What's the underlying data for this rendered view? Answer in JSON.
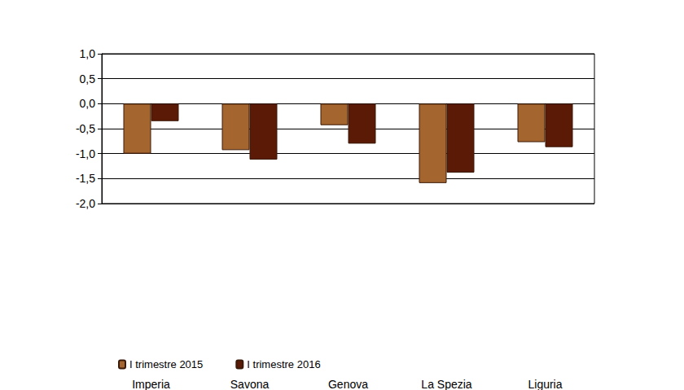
{
  "chart_data": {
    "type": "bar",
    "categories": [
      "Imperia",
      "Savona",
      "Genova",
      "La Spezia",
      "Liguria"
    ],
    "series": [
      {
        "name": "I trimestre 2015",
        "color": "#A5652F",
        "values": [
          -1.0,
          -0.93,
          -0.43,
          -1.59,
          -0.77
        ]
      },
      {
        "name": "I trimestre 2016",
        "color": "#5A1A05",
        "values": [
          -0.35,
          -1.12,
          -0.8,
          -1.38,
          -0.87
        ]
      }
    ],
    "ylim": [
      -2,
      1
    ],
    "yticks": [
      {
        "value": -2,
        "label": "-2,0"
      },
      {
        "value": -1.5,
        "label": "-1,5"
      },
      {
        "value": -1,
        "label": "-1,0"
      },
      {
        "value": -0.5,
        "label": "-0,5"
      },
      {
        "value": 0,
        "label": "0,0"
      },
      {
        "value": 0.5,
        "label": "0,5"
      },
      {
        "value": 1,
        "label": "1,0"
      }
    ],
    "grid": true,
    "legend": "bottom"
  }
}
